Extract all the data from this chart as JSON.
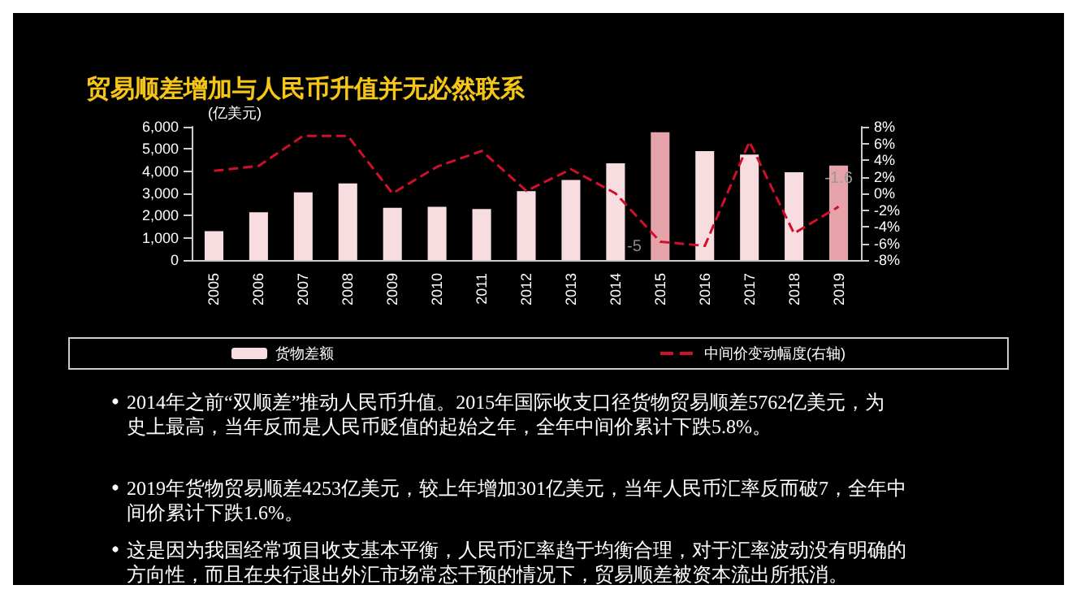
{
  "chart_data": {
    "type": "bar",
    "title": "贸易顺差增加与人民币升值并无必然联系",
    "ylabel": "(亿美元)",
    "categories": [
      "2005",
      "2006",
      "2007",
      "2008",
      "2009",
      "2010",
      "2011",
      "2012",
      "2013",
      "2014",
      "2015",
      "2016",
      "2017",
      "2018",
      "2019"
    ],
    "series": [
      {
        "name": "货物差额",
        "colors": [
          "#f7dde0",
          "#f7dde0",
          "#f7dde0",
          "#f7dde0",
          "#f7dde0",
          "#f7dde0",
          "#f7dde0",
          "#f7dde0",
          "#f7dde0",
          "#f7dde0",
          "#e6a3aa",
          "#f7dde0",
          "#f7dde0",
          "#f7dde0",
          "#e6a3aa"
        ],
        "values": [
          1300,
          2150,
          3050,
          3450,
          2350,
          2400,
          2300,
          3100,
          3600,
          4350,
          5750,
          4900,
          4750,
          3950,
          4250
        ]
      },
      {
        "name": "中间价变动幅度(右轴)",
        "type": "line",
        "axis": "y2",
        "color": "#d0102a",
        "line_style": "dashed",
        "marker": "none",
        "values": [
          2.7,
          3.3,
          6.9,
          6.9,
          0,
          3.2,
          5.1,
          0.3,
          2.9,
          0,
          -5.8,
          -6.3,
          6.2,
          -4.8,
          -1.6
        ],
        "value_labels": [
          null,
          null,
          null,
          null,
          null,
          null,
          null,
          null,
          null,
          null,
          null,
          null,
          null,
          null,
          "-1.6"
        ]
      }
    ],
    "ylim": [
      0,
      6000
    ],
    "yticks": [
      {
        "value": 0,
        "label": "0"
      },
      {
        "value": 1000,
        "label": "1,000"
      },
      {
        "value": 2000,
        "label": "2,000"
      },
      {
        "value": 3000,
        "label": "3,000"
      },
      {
        "value": 4000,
        "label": "4,000"
      },
      {
        "value": 5000,
        "label": "5,000"
      },
      {
        "value": 6000,
        "label": "6,000"
      }
    ],
    "y2lim": [
      -8,
      8
    ],
    "y2ticks": [
      {
        "value": -8,
        "label": "-8%"
      },
      {
        "value": -6,
        "label": "-6%"
      },
      {
        "value": -4,
        "label": "-4%"
      },
      {
        "value": -2,
        "label": "-2%"
      },
      {
        "value": 0,
        "label": "0%"
      },
      {
        "value": 2,
        "label": "2%"
      },
      {
        "value": 4,
        "label": "4%"
      },
      {
        "value": 6,
        "label": "6%"
      },
      {
        "value": 8,
        "label": "8%"
      }
    ],
    "grid": false,
    "legend": "bottom",
    "annotations": [
      "-5",
      "2014年之前“双顺差”推动人民币升值。2015年国际收支口径货物贸易顺差5762亿美元，为史上最高，当年反而是人民币贬值的起始之年，全年中间价累计下跌5.8%。",
      "2019年货物贸易顺差4253亿美元，较上年增加301亿美元，当年人民币汇率反而破7，全年中间价累计下跌1.6%。",
      "这是因为我国经常项目收支基本平衡，人民币汇率趋于均衡合理，对于汇率波动没有明确的方向性，而且在央行退出外汇市场常态干预的情况下，贸易顺差被资本流出所抵消。"
    ]
  }
}
